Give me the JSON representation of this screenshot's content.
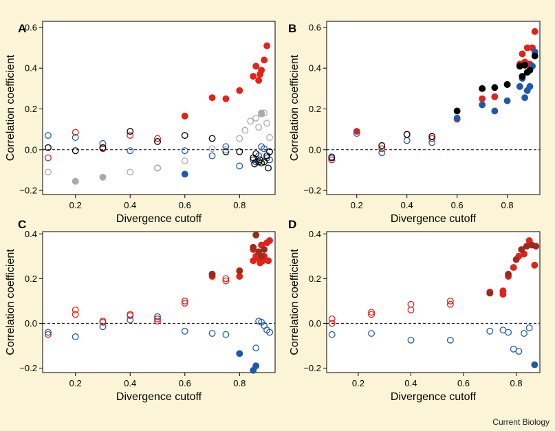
{
  "figure": {
    "credit": "Current Biology"
  },
  "colors": {
    "background": "#fbf4d6",
    "red": "#e2231a",
    "blue": "#1f5aa8",
    "black": "#000000",
    "grey": "#aaaaaa",
    "darkred": "#9e2a1e"
  },
  "chart_data": [
    {
      "panel": "A",
      "type": "scatter",
      "xlabel": "Divergence cutoff",
      "ylabel": "Correlation coefficient",
      "xlim": [
        0.08,
        0.93
      ],
      "ylim": [
        -0.22,
        0.63
      ],
      "xticks": [
        0.2,
        0.4,
        0.6,
        0.8
      ],
      "yticks": [
        -0.2,
        0.0,
        0.2,
        0.4,
        0.6
      ],
      "xtick_labels": [
        "0.2",
        "0.4",
        "0.6",
        "0.8"
      ],
      "ytick_labels": [
        "−0.2",
        "0.0",
        "0.2",
        "0.4",
        "0.6"
      ],
      "reference_line": 0,
      "series": [
        {
          "color": "red",
          "filled": false,
          "points": [
            [
              0.1,
              -0.04
            ],
            [
              0.2,
              0.085
            ],
            [
              0.3,
              0.005
            ],
            [
              0.4,
              0.07
            ],
            [
              0.5,
              0.055
            ]
          ]
        },
        {
          "color": "red",
          "filled": true,
          "points": [
            [
              0.6,
              0.165
            ],
            [
              0.7,
              0.255
            ],
            [
              0.75,
              0.25
            ],
            [
              0.8,
              0.29
            ],
            [
              0.85,
              0.36
            ],
            [
              0.86,
              0.41
            ],
            [
              0.87,
              0.34
            ],
            [
              0.875,
              0.37
            ],
            [
              0.88,
              0.39
            ],
            [
              0.89,
              0.44
            ],
            [
              0.9,
              0.51
            ]
          ]
        },
        {
          "color": "blue",
          "filled": false,
          "points": [
            [
              0.1,
              0.07
            ],
            [
              0.2,
              0.06
            ],
            [
              0.3,
              0.03
            ],
            [
              0.4,
              -0.005
            ],
            [
              0.5,
              -0.09
            ],
            [
              0.6,
              -0.005
            ],
            [
              0.7,
              -0.03
            ],
            [
              0.75,
              0.015
            ],
            [
              0.8,
              -0.08
            ],
            [
              0.85,
              -0.05
            ],
            [
              0.86,
              -0.06
            ],
            [
              0.87,
              -0.03
            ],
            [
              0.88,
              0.015
            ],
            [
              0.89,
              0.005
            ],
            [
              0.9,
              -0.04
            ],
            [
              0.91,
              -0.05
            ]
          ]
        },
        {
          "color": "blue",
          "filled": true,
          "points": [
            [
              0.6,
              -0.12
            ]
          ]
        },
        {
          "color": "black",
          "filled": false,
          "points": [
            [
              0.1,
              0.01
            ],
            [
              0.2,
              -0.005
            ],
            [
              0.3,
              0.01
            ],
            [
              0.4,
              0.09
            ],
            [
              0.5,
              0.04
            ],
            [
              0.6,
              0.07
            ],
            [
              0.7,
              0.055
            ],
            [
              0.75,
              -0.01
            ],
            [
              0.8,
              -0.01
            ],
            [
              0.85,
              -0.04
            ],
            [
              0.855,
              -0.07
            ],
            [
              0.86,
              -0.02
            ],
            [
              0.87,
              -0.06
            ],
            [
              0.875,
              -0.05
            ],
            [
              0.88,
              -0.065
            ],
            [
              0.89,
              -0.06
            ],
            [
              0.9,
              -0.03
            ],
            [
              0.905,
              -0.09
            ],
            [
              0.91,
              -0.01
            ]
          ]
        },
        {
          "color": "grey",
          "filled": false,
          "points": [
            [
              0.1,
              -0.11
            ],
            [
              0.4,
              -0.11
            ],
            [
              0.5,
              -0.09
            ],
            [
              0.6,
              -0.055
            ],
            [
              0.7,
              0.005
            ],
            [
              0.75,
              0.0
            ],
            [
              0.8,
              0.055
            ],
            [
              0.82,
              0.095
            ],
            [
              0.84,
              0.14
            ],
            [
              0.86,
              0.155
            ],
            [
              0.87,
              0.11
            ],
            [
              0.88,
              0.175
            ],
            [
              0.89,
              0.18
            ],
            [
              0.9,
              0.13
            ],
            [
              0.91,
              0.06
            ]
          ]
        },
        {
          "color": "grey",
          "filled": true,
          "points": [
            [
              0.2,
              -0.155
            ],
            [
              0.3,
              -0.135
            ],
            [
              0.88,
              0.18
            ]
          ]
        }
      ]
    },
    {
      "panel": "B",
      "type": "scatter",
      "xlabel": "Divergence cutoff",
      "ylabel": "Correlation coefficient",
      "xlim": [
        0.08,
        0.93
      ],
      "ylim": [
        -0.22,
        0.63
      ],
      "xticks": [
        0.2,
        0.4,
        0.6,
        0.8
      ],
      "yticks": [
        -0.2,
        0.0,
        0.2,
        0.4,
        0.6
      ],
      "xtick_labels": [
        "0.2",
        "0.4",
        "0.6",
        "0.8"
      ],
      "ytick_labels": [
        "−0.2",
        "0.0",
        "0.2",
        "0.4",
        "0.6"
      ],
      "reference_line": 0,
      "series": [
        {
          "color": "red",
          "filled": false,
          "points": [
            [
              0.1,
              -0.05
            ],
            [
              0.3,
              0.005
            ],
            [
              0.4,
              0.075
            ],
            [
              0.5,
              0.055
            ]
          ]
        },
        {
          "color": "red",
          "filled": true,
          "points": [
            [
              0.2,
              0.09
            ],
            [
              0.6,
              0.15
            ],
            [
              0.7,
              0.25
            ],
            [
              0.75,
              0.26
            ],
            [
              0.8,
              0.32
            ],
            [
              0.85,
              0.42
            ],
            [
              0.86,
              0.47
            ],
            [
              0.87,
              0.43
            ],
            [
              0.88,
              0.5
            ],
            [
              0.89,
              0.42
            ],
            [
              0.9,
              0.5
            ],
            [
              0.91,
              0.58
            ]
          ]
        },
        {
          "color": "blue",
          "filled": false,
          "points": [
            [
              0.1,
              -0.035
            ],
            [
              0.2,
              0.08
            ],
            [
              0.3,
              -0.015
            ],
            [
              0.4,
              0.045
            ],
            [
              0.5,
              0.035
            ]
          ]
        },
        {
          "color": "blue",
          "filled": true,
          "points": [
            [
              0.6,
              0.155
            ],
            [
              0.7,
              0.22
            ],
            [
              0.75,
              0.19
            ],
            [
              0.8,
              0.24
            ],
            [
              0.85,
              0.31
            ],
            [
              0.86,
              0.35
            ],
            [
              0.87,
              0.255
            ],
            [
              0.88,
              0.29
            ],
            [
              0.89,
              0.31
            ],
            [
              0.9,
              0.41
            ],
            [
              0.91,
              0.48
            ]
          ]
        },
        {
          "color": "black",
          "filled": false,
          "points": [
            [
              0.1,
              -0.04
            ],
            [
              0.3,
              0.02
            ],
            [
              0.4,
              0.075
            ],
            [
              0.5,
              0.065
            ]
          ]
        },
        {
          "color": "black",
          "filled": true,
          "points": [
            [
              0.6,
              0.19
            ],
            [
              0.7,
              0.3
            ],
            [
              0.75,
              0.305
            ],
            [
              0.8,
              0.32
            ],
            [
              0.85,
              0.41
            ],
            [
              0.86,
              0.36
            ],
            [
              0.87,
              0.415
            ],
            [
              0.88,
              0.38
            ],
            [
              0.89,
              0.39
            ],
            [
              0.91,
              0.46
            ]
          ]
        }
      ]
    },
    {
      "panel": "C",
      "type": "scatter",
      "xlabel": "Divergence cutoff",
      "ylabel": "Correlation coefficient",
      "xlim": [
        0.08,
        0.93
      ],
      "ylim": [
        -0.22,
        0.41
      ],
      "xticks": [
        0.2,
        0.4,
        0.6,
        0.8
      ],
      "yticks": [
        -0.2,
        0.0,
        0.2,
        0.4
      ],
      "xtick_labels": [
        "0.2",
        "0.4",
        "0.6",
        "0.8"
      ],
      "ytick_labels": [
        "−0.2",
        "0.0",
        "0.2",
        "0.4"
      ],
      "reference_line": 0,
      "series": [
        {
          "color": "red",
          "filled": false,
          "points": [
            [
              0.1,
              -0.05
            ],
            [
              0.2,
              0.06
            ],
            [
              0.2,
              0.04
            ],
            [
              0.3,
              0.01
            ],
            [
              0.3,
              0.005
            ],
            [
              0.4,
              0.04
            ],
            [
              0.4,
              0.035
            ],
            [
              0.5,
              0.02
            ],
            [
              0.5,
              0.01
            ],
            [
              0.6,
              0.1
            ],
            [
              0.6,
              0.09
            ],
            [
              0.75,
              0.2
            ],
            [
              0.75,
              0.19
            ]
          ]
        },
        {
          "color": "red",
          "filled": true,
          "points": [
            [
              0.7,
              0.21
            ],
            [
              0.7,
              0.22
            ],
            [
              0.8,
              0.21
            ],
            [
              0.85,
              0.28
            ],
            [
              0.85,
              0.33
            ],
            [
              0.86,
              0.3
            ],
            [
              0.87,
              0.29
            ],
            [
              0.875,
              0.27
            ],
            [
              0.88,
              0.35
            ],
            [
              0.885,
              0.28
            ],
            [
              0.89,
              0.3
            ],
            [
              0.9,
              0.36
            ],
            [
              0.905,
              0.28
            ],
            [
              0.91,
              0.37
            ]
          ]
        },
        {
          "color": "darkred",
          "filled": true,
          "points": [
            [
              0.7,
              0.22
            ],
            [
              0.8,
              0.235
            ],
            [
              0.85,
              0.34
            ],
            [
              0.86,
              0.395
            ],
            [
              0.87,
              0.32
            ],
            [
              0.88,
              0.3
            ],
            [
              0.89,
              0.33
            ]
          ]
        },
        {
          "color": "blue",
          "filled": false,
          "points": [
            [
              0.1,
              -0.04
            ],
            [
              0.2,
              -0.06
            ],
            [
              0.3,
              -0.015
            ],
            [
              0.4,
              0.015
            ],
            [
              0.5,
              0.03
            ],
            [
              0.6,
              -0.035
            ],
            [
              0.7,
              -0.045
            ],
            [
              0.75,
              -0.05
            ],
            [
              0.86,
              -0.11
            ],
            [
              0.87,
              0.01
            ],
            [
              0.88,
              0.005
            ],
            [
              0.89,
              -0.01
            ],
            [
              0.9,
              -0.03
            ],
            [
              0.91,
              -0.04
            ]
          ]
        },
        {
          "color": "blue",
          "filled": true,
          "points": [
            [
              0.8,
              -0.135
            ],
            [
              0.85,
              -0.21
            ],
            [
              0.86,
              -0.19
            ]
          ]
        }
      ]
    },
    {
      "panel": "D",
      "type": "scatter",
      "xlabel": "Divergence cutoff",
      "ylabel": "Correlation coefficient",
      "xlim": [
        0.08,
        0.89
      ],
      "ylim": [
        -0.22,
        0.41
      ],
      "xticks": [
        0.2,
        0.4,
        0.6,
        0.8
      ],
      "yticks": [
        -0.2,
        0.0,
        0.2,
        0.4
      ],
      "xtick_labels": [
        "0.2",
        "0.4",
        "0.6",
        "0.8"
      ],
      "ytick_labels": [
        "−0.2",
        "0.0",
        "0.2",
        "0.4"
      ],
      "reference_line": 0,
      "series": [
        {
          "color": "red",
          "filled": false,
          "points": [
            [
              0.1,
              0.02
            ],
            [
              0.1,
              0.0
            ],
            [
              0.25,
              0.05
            ],
            [
              0.25,
              0.04
            ],
            [
              0.4,
              0.085
            ],
            [
              0.4,
              0.06
            ],
            [
              0.55,
              0.1
            ],
            [
              0.55,
              0.085
            ]
          ]
        },
        {
          "color": "red",
          "filled": true,
          "points": [
            [
              0.7,
              0.14
            ],
            [
              0.75,
              0.13
            ],
            [
              0.75,
              0.145
            ],
            [
              0.77,
              0.21
            ],
            [
              0.79,
              0.25
            ],
            [
              0.81,
              0.3
            ],
            [
              0.83,
              0.31
            ],
            [
              0.85,
              0.37
            ],
            [
              0.87,
              0.26
            ]
          ]
        },
        {
          "color": "darkred",
          "filled": true,
          "points": [
            [
              0.7,
              0.135
            ],
            [
              0.77,
              0.22
            ],
            [
              0.8,
              0.285
            ],
            [
              0.82,
              0.33
            ],
            [
              0.84,
              0.345
            ],
            [
              0.86,
              0.35
            ],
            [
              0.875,
              0.345
            ]
          ]
        },
        {
          "color": "blue",
          "filled": false,
          "points": [
            [
              0.1,
              -0.05
            ],
            [
              0.25,
              -0.045
            ],
            [
              0.4,
              -0.075
            ],
            [
              0.55,
              -0.075
            ],
            [
              0.7,
              -0.035
            ],
            [
              0.75,
              -0.03
            ],
            [
              0.77,
              -0.04
            ],
            [
              0.79,
              -0.115
            ],
            [
              0.81,
              -0.125
            ],
            [
              0.83,
              -0.045
            ],
            [
              0.85,
              -0.02
            ]
          ]
        },
        {
          "color": "blue",
          "filled": true,
          "points": [
            [
              0.87,
              -0.185
            ]
          ]
        }
      ]
    }
  ]
}
